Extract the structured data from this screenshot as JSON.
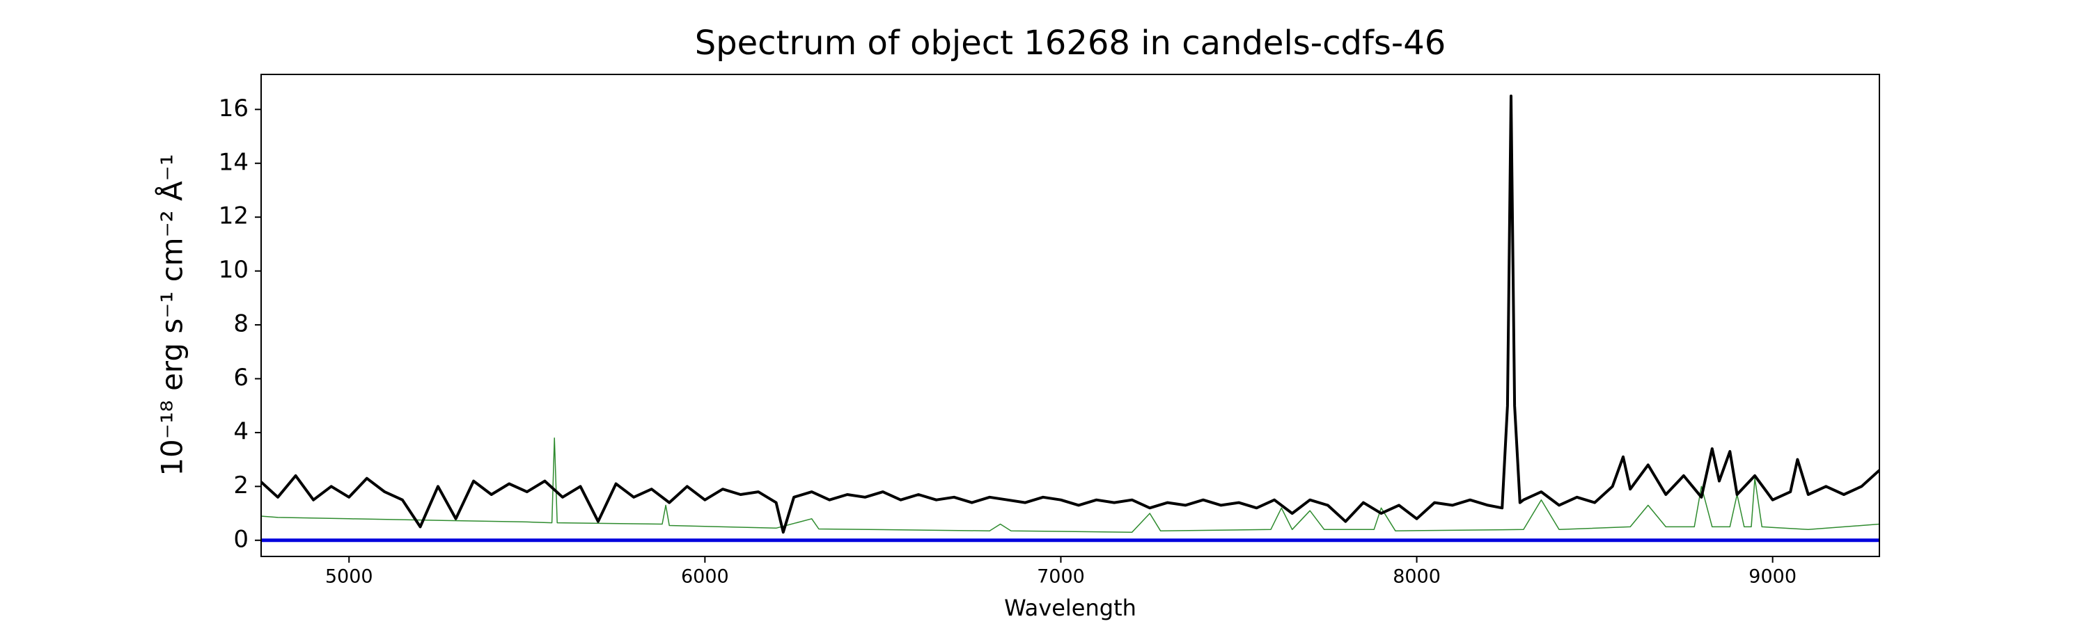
{
  "chart_data": {
    "type": "line",
    "title": "Spectrum of object 16268 in candels-cdfs-46",
    "x_label": "Wavelength",
    "y_label": "10⁻¹⁸ erg s⁻¹ cm⁻² Å⁻¹",
    "xlim": [
      4753,
      9300
    ],
    "ylim": [
      -0.6,
      17.3
    ],
    "xticks": [
      5000,
      6000,
      7000,
      8000,
      9000
    ],
    "yticks": [
      0,
      2,
      4,
      6,
      8,
      10,
      12,
      14,
      16
    ],
    "grid": false,
    "series": [
      {
        "color": "#2e8b2e",
        "width": 1.5,
        "x": [
          4750,
          4800,
          5000,
          5500,
          5570,
          5577,
          5585,
          5880,
          5890,
          5900,
          6200,
          6300,
          6320,
          6800,
          6830,
          6860,
          7200,
          7250,
          7280,
          7590,
          7620,
          7650,
          7700,
          7740,
          7880,
          7900,
          7940,
          8300,
          8350,
          8400,
          8600,
          8650,
          8700,
          8780,
          8800,
          8830,
          8880,
          8900,
          8920,
          8940,
          8950,
          8970,
          9100,
          9300
        ],
        "values": [
          0.9,
          0.85,
          0.8,
          0.68,
          0.65,
          3.8,
          0.65,
          0.6,
          1.3,
          0.55,
          0.45,
          0.8,
          0.42,
          0.35,
          0.6,
          0.35,
          0.3,
          1.0,
          0.35,
          0.4,
          1.2,
          0.4,
          1.1,
          0.4,
          0.4,
          1.2,
          0.35,
          0.4,
          1.5,
          0.4,
          0.5,
          1.3,
          0.5,
          0.5,
          2.0,
          0.5,
          0.5,
          1.7,
          0.5,
          0.5,
          2.3,
          0.5,
          0.4,
          0.6
        ]
      },
      {
        "color": "#000000",
        "width": 4,
        "x": [
          4750,
          4800,
          4850,
          4900,
          4950,
          5000,
          5050,
          5100,
          5150,
          5200,
          5250,
          5300,
          5350,
          5400,
          5450,
          5500,
          5550,
          5600,
          5650,
          5700,
          5750,
          5800,
          5850,
          5900,
          5950,
          6000,
          6050,
          6100,
          6150,
          6200,
          6220,
          6250,
          6300,
          6350,
          6400,
          6450,
          6500,
          6550,
          6600,
          6650,
          6700,
          6750,
          6800,
          6850,
          6900,
          6950,
          7000,
          7050,
          7100,
          7150,
          7200,
          7250,
          7300,
          7350,
          7400,
          7450,
          7500,
          7550,
          7600,
          7650,
          7700,
          7750,
          7800,
          7850,
          7900,
          7950,
          8000,
          8050,
          8100,
          8150,
          8200,
          8240,
          8255,
          8265,
          8275,
          8290,
          8300,
          8350,
          8400,
          8450,
          8500,
          8550,
          8580,
          8600,
          8650,
          8700,
          8750,
          8800,
          8830,
          8850,
          8880,
          8900,
          8950,
          9000,
          9050,
          9070,
          9100,
          9150,
          9200,
          9250,
          9300
        ],
        "values": [
          2.2,
          1.6,
          2.4,
          1.5,
          2.0,
          1.6,
          2.3,
          1.8,
          1.5,
          0.5,
          2.0,
          0.8,
          2.2,
          1.7,
          2.1,
          1.8,
          2.2,
          1.6,
          2.0,
          0.7,
          2.1,
          1.6,
          1.9,
          1.4,
          2.0,
          1.5,
          1.9,
          1.7,
          1.8,
          1.4,
          0.3,
          1.6,
          1.8,
          1.5,
          1.7,
          1.6,
          1.8,
          1.5,
          1.7,
          1.5,
          1.6,
          1.4,
          1.6,
          1.5,
          1.4,
          1.6,
          1.5,
          1.3,
          1.5,
          1.4,
          1.5,
          1.2,
          1.4,
          1.3,
          1.5,
          1.3,
          1.4,
          1.2,
          1.5,
          1.0,
          1.5,
          1.3,
          0.7,
          1.4,
          1.0,
          1.3,
          0.8,
          1.4,
          1.3,
          1.5,
          1.3,
          1.2,
          5.0,
          16.5,
          5.0,
          1.4,
          1.5,
          1.8,
          1.3,
          1.6,
          1.4,
          2.0,
          3.1,
          1.9,
          2.8,
          1.7,
          2.4,
          1.6,
          3.4,
          2.2,
          3.3,
          1.7,
          2.4,
          1.5,
          1.8,
          3.0,
          1.7,
          2.0,
          1.7,
          2.0,
          2.6
        ]
      },
      {
        "color": "#0000dd",
        "width": 5,
        "x": [
          4753,
          9300
        ],
        "values": [
          0,
          0
        ]
      }
    ]
  }
}
